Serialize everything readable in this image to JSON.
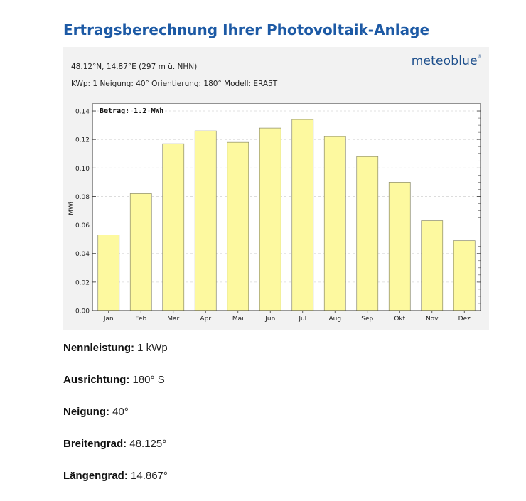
{
  "page": {
    "title": "Ertragsberechnung Ihrer Photovoltaik-Anlage",
    "coords_line": "48.12°N, 14.87°E (297 m ü. NHN)",
    "params_line": "KWp: 1  Neigung: 40°  Orientierung: 180°  Modell: ERA5T",
    "logo": "meteoblue"
  },
  "chart_data": {
    "type": "bar",
    "annotation": "Betrag: 1.2 MWh",
    "ylabel": "MWh",
    "xlabel": "",
    "ylim": [
      0,
      0.145
    ],
    "yticks": [
      "0.00",
      "0.02",
      "0.04",
      "0.06",
      "0.08",
      "0.10",
      "0.12",
      "0.14"
    ],
    "categories": [
      "Jan",
      "Feb",
      "Mär",
      "Apr",
      "Mai",
      "Jun",
      "Jul",
      "Aug",
      "Sep",
      "Okt",
      "Nov",
      "Dez"
    ],
    "values": [
      0.053,
      0.082,
      0.117,
      0.126,
      0.118,
      0.128,
      0.134,
      0.122,
      0.108,
      0.09,
      0.063,
      0.049
    ],
    "bar_color": "#fdf99f",
    "bar_edge": "#8a8a6a",
    "grid": true,
    "legend": "none"
  },
  "stats": [
    {
      "label": "Nennleistung:",
      "value": "1 kWp"
    },
    {
      "label": "Ausrichtung:",
      "value": "180° S"
    },
    {
      "label": "Neigung:",
      "value": "40°"
    },
    {
      "label": "Breitengrad:",
      "value": "48.125°"
    },
    {
      "label": "Längengrad:",
      "value": "14.867°"
    }
  ]
}
